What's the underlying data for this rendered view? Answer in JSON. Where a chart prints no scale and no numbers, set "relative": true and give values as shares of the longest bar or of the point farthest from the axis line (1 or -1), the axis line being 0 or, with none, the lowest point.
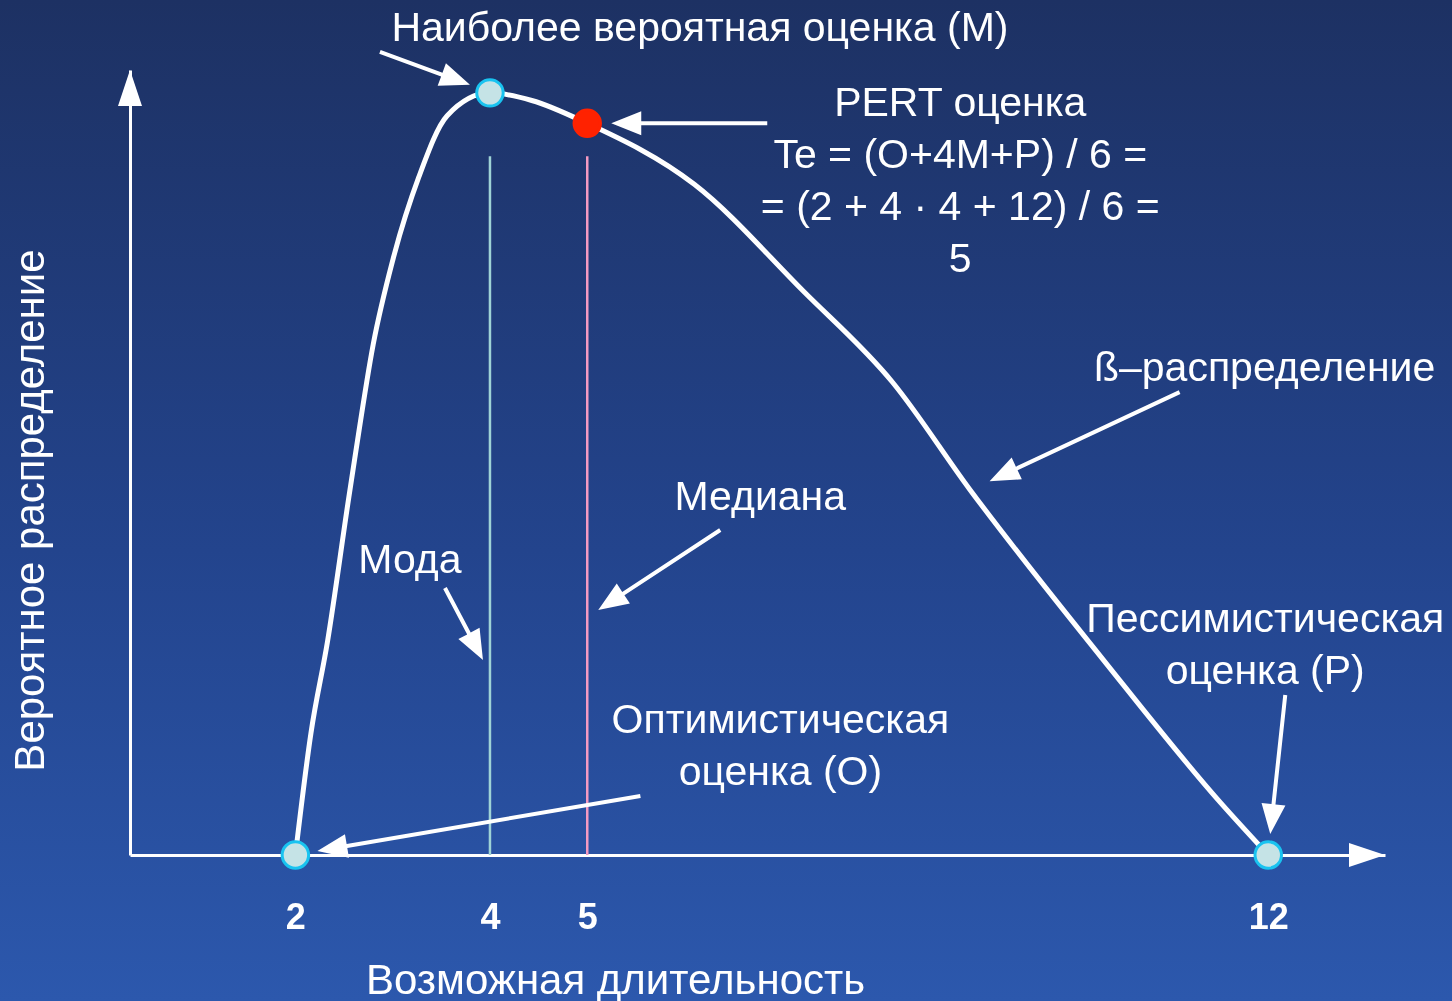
{
  "chart_data": {
    "type": "line",
    "relative": true,
    "xlabel": "Возможная длительность",
    "ylabel": "Вероятное распределение",
    "xlim": [
      0.3,
      13.2
    ],
    "xticks": [
      2,
      4,
      5,
      12
    ],
    "series": [
      {
        "color": "#ffffff",
        "x": [
          2,
          2.16,
          2.33,
          2.55,
          2.61,
          2.8,
          3,
          3.27,
          3.56,
          4,
          4.43,
          5,
          6.1,
          7.22,
          8.14,
          8.93,
          10.28,
          11.5,
          12
        ],
        "values": [
          0,
          0.16,
          0.28,
          0.47,
          0.52,
          0.67,
          0.78,
          0.89,
          0.97,
          1,
          0.99,
          0.96,
          0.88,
          0.74,
          0.62,
          0.48,
          0.26,
          0.07,
          0
        ]
      },
      {
        "type": "scatter",
        "color": "#c5e3e6",
        "x": [
          2,
          4,
          12
        ],
        "values": [
          0,
          1,
          0
        ]
      },
      {
        "type": "scatter",
        "color": "#ff2200",
        "x": [
          5
        ],
        "values": [
          0.96
        ]
      }
    ],
    "ref_lines": [
      {
        "axis": "x",
        "value": 4,
        "label": "Мода",
        "color": "#9fd3d6"
      },
      {
        "axis": "x",
        "value": 5,
        "label": "Медиана",
        "color": "#f49ac2"
      }
    ],
    "annotations": [
      {
        "text": "Наиболее вероятная оценка (M)",
        "x": 4,
        "y": 1
      },
      "PERT оценка\nTe = (O+4M+P) / 6 =\n= (2 + 4 · 4 + 12) / 6  =\n5",
      "ß–распределение",
      "Оптимистическая\nоценка (O)",
      "Пессимистическая\nоценка (P)"
    ]
  }
}
